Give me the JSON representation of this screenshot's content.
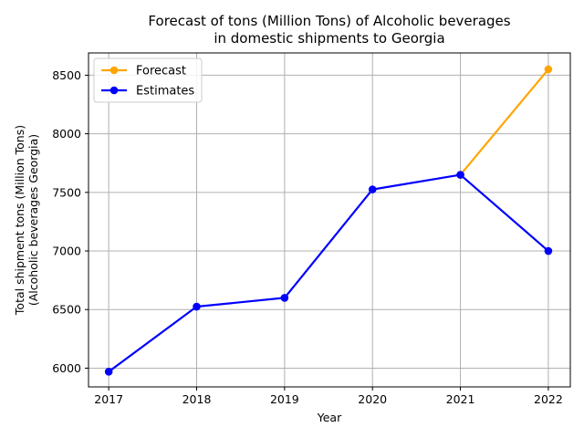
{
  "chart_data": {
    "type": "line",
    "title_lines": [
      "Forecast of tons (Million Tons) of Alcoholic beverages",
      "in domestic shipments to Georgia"
    ],
    "xlabel": "Year",
    "ylabel_lines": [
      "Total shipment tons (Million Tons)",
      "(Alcoholic beverages Georgia)"
    ],
    "x": [
      2017,
      2018,
      2019,
      2020,
      2021,
      2022
    ],
    "xlim": [
      2016.77,
      2022.25
    ],
    "ylim": [
      5840,
      8690
    ],
    "yticks": [
      6000,
      6500,
      7000,
      7500,
      8000,
      8500
    ],
    "grid": true,
    "legend_position": "upper-left",
    "series": [
      {
        "name": "Forecast",
        "color": "#ffa500",
        "x": [
          2021,
          2022
        ],
        "values": [
          7650,
          8550
        ]
      },
      {
        "name": "Estimates",
        "color": "#0000ff",
        "x": [
          2017,
          2018,
          2019,
          2020,
          2021,
          2022
        ],
        "values": [
          5970,
          6525,
          6600,
          7525,
          7650,
          7000
        ]
      }
    ]
  }
}
